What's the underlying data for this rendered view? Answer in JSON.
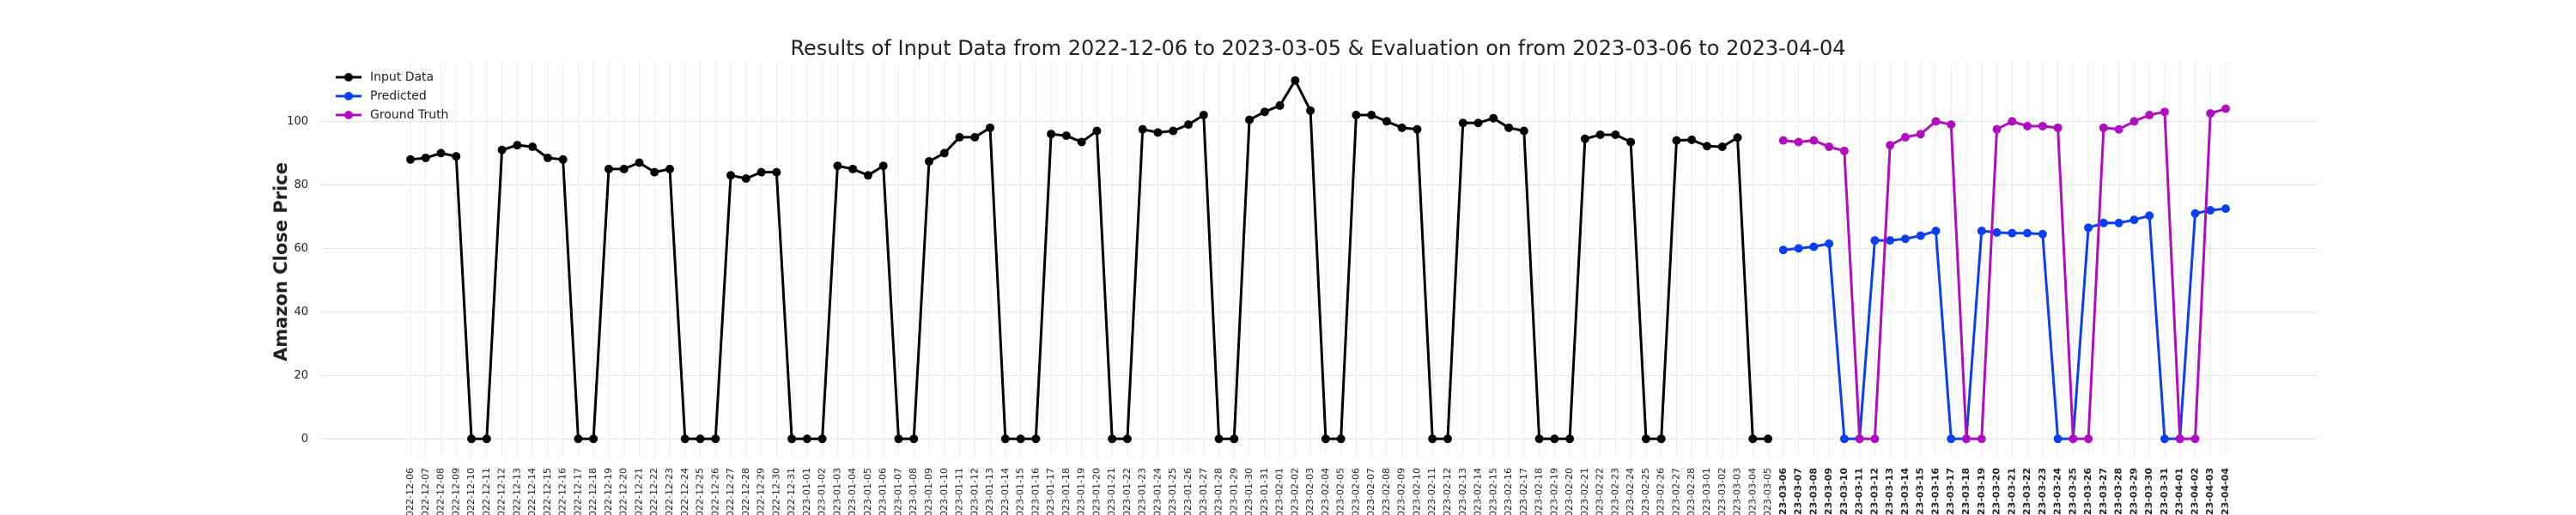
{
  "chart_data": {
    "type": "line",
    "title": "Results of Input Data from 2022-12-06 to 2023-03-05 & Evaluation on from 2023-03-06 to 2023-04-04",
    "ylabel": "Amazon Close Price",
    "categories": [
      "2022-12-06",
      "2022-12-07",
      "2022-12-08",
      "2022-12-09",
      "2022-12-10",
      "2022-12-11",
      "2022-12-12",
      "2022-12-13",
      "2022-12-14",
      "2022-12-15",
      "2022-12-16",
      "2022-12-17",
      "2022-12-18",
      "2022-12-19",
      "2022-12-20",
      "2022-12-21",
      "2022-12-22",
      "2022-12-23",
      "2022-12-24",
      "2022-12-25",
      "2022-12-26",
      "2022-12-27",
      "2022-12-28",
      "2022-12-29",
      "2022-12-30",
      "2022-12-31",
      "2023-01-01",
      "2023-01-02",
      "2023-01-03",
      "2023-01-04",
      "2023-01-05",
      "2023-01-06",
      "2023-01-07",
      "2023-01-08",
      "2023-01-09",
      "2023-01-10",
      "2023-01-11",
      "2023-01-12",
      "2023-01-13",
      "2023-01-14",
      "2023-01-15",
      "2023-01-16",
      "2023-01-17",
      "2023-01-18",
      "2023-01-19",
      "2023-01-20",
      "2023-01-21",
      "2023-01-22",
      "2023-01-23",
      "2023-01-24",
      "2023-01-25",
      "2023-01-26",
      "2023-01-27",
      "2023-01-28",
      "2023-01-29",
      "2023-01-30",
      "2023-01-31",
      "2023-02-01",
      "2023-02-02",
      "2023-02-03",
      "2023-02-04",
      "2023-02-05",
      "2023-02-06",
      "2023-02-07",
      "2023-02-08",
      "2023-02-09",
      "2023-02-10",
      "2023-02-11",
      "2023-02-12",
      "2023-02-13",
      "2023-02-14",
      "2023-02-15",
      "2023-02-16",
      "2023-02-17",
      "2023-02-18",
      "2023-02-19",
      "2023-02-20",
      "2023-02-21",
      "2023-02-22",
      "2023-02-23",
      "2023-02-24",
      "2023-02-25",
      "2023-02-26",
      "2023-02-27",
      "2023-02-28",
      "2023-03-01",
      "2023-03-02",
      "2023-03-03",
      "2023-03-04",
      "2023-03-05",
      "2023-03-06",
      "2023-03-07",
      "2023-03-08",
      "2023-03-09",
      "2023-03-10",
      "2023-03-11",
      "2023-03-12",
      "2023-03-13",
      "2023-03-14",
      "2023-03-15",
      "2023-03-16",
      "2023-03-17",
      "2023-03-18",
      "2023-03-19",
      "2023-03-20",
      "2023-03-21",
      "2023-03-22",
      "2023-03-23",
      "2023-03-24",
      "2023-03-25",
      "2023-03-26",
      "2023-03-27",
      "2023-03-28",
      "2023-03-29",
      "2023-03-30",
      "2023-03-31",
      "2023-04-01",
      "2023-04-02",
      "2023-04-03",
      "2023-04-04"
    ],
    "series": [
      {
        "name": "Input Data",
        "color": "#000000",
        "values": [
          88,
          88.5,
          90,
          89,
          0,
          0,
          91,
          92.5,
          92,
          88.5,
          88,
          0,
          0,
          85,
          85,
          87,
          84,
          85,
          0,
          0,
          0,
          83,
          82,
          84,
          84,
          0,
          0,
          0,
          86,
          85,
          83,
          86,
          0,
          0,
          87.4,
          90,
          95,
          95,
          98,
          0,
          0,
          0,
          96,
          95.5,
          93.5,
          97,
          0,
          0,
          97.5,
          96.5,
          97,
          99,
          102,
          0,
          0,
          100.5,
          103,
          105,
          112.9,
          103.4,
          0,
          0,
          102,
          102,
          100,
          98,
          97.5,
          0,
          0,
          99.5,
          99.5,
          101,
          98,
          97,
          0,
          0,
          0,
          94.5,
          95.8,
          95.8,
          93.5,
          0,
          0,
          94,
          94.2,
          92.2,
          92,
          94.9,
          0,
          0,
          null,
          null,
          null,
          null,
          null,
          null,
          null,
          null,
          null,
          null,
          null,
          null,
          null,
          null,
          null,
          null,
          null,
          null,
          null,
          null,
          null,
          null,
          null,
          null,
          null,
          null,
          null,
          null,
          null,
          null
        ]
      },
      {
        "name": "Predicted",
        "color": "#0a3ff0",
        "values": [
          null,
          null,
          null,
          null,
          null,
          null,
          null,
          null,
          null,
          null,
          null,
          null,
          null,
          null,
          null,
          null,
          null,
          null,
          null,
          null,
          null,
          null,
          null,
          null,
          null,
          null,
          null,
          null,
          null,
          null,
          null,
          null,
          null,
          null,
          null,
          null,
          null,
          null,
          null,
          null,
          null,
          null,
          null,
          null,
          null,
          null,
          null,
          null,
          null,
          null,
          null,
          null,
          null,
          null,
          null,
          null,
          null,
          null,
          null,
          null,
          null,
          null,
          null,
          null,
          null,
          null,
          null,
          null,
          null,
          null,
          null,
          null,
          null,
          null,
          null,
          null,
          null,
          null,
          null,
          null,
          null,
          null,
          null,
          null,
          null,
          null,
          null,
          null,
          null,
          null,
          59.5,
          60,
          60.5,
          61.5,
          0,
          0,
          62.5,
          62.5,
          63,
          64,
          65.5,
          0,
          0,
          65.5,
          65,
          64.8,
          64.8,
          64.5,
          0,
          0,
          66.5,
          68,
          68,
          69,
          70.3,
          0,
          0,
          71,
          72,
          72.5
        ]
      },
      {
        "name": "Ground Truth",
        "color": "#b00cc0",
        "values": [
          null,
          null,
          null,
          null,
          null,
          null,
          null,
          null,
          null,
          null,
          null,
          null,
          null,
          null,
          null,
          null,
          null,
          null,
          null,
          null,
          null,
          null,
          null,
          null,
          null,
          null,
          null,
          null,
          null,
          null,
          null,
          null,
          null,
          null,
          null,
          null,
          null,
          null,
          null,
          null,
          null,
          null,
          null,
          null,
          null,
          null,
          null,
          null,
          null,
          null,
          null,
          null,
          null,
          null,
          null,
          null,
          null,
          null,
          null,
          null,
          null,
          null,
          null,
          null,
          null,
          null,
          null,
          null,
          null,
          null,
          null,
          null,
          null,
          null,
          null,
          null,
          null,
          null,
          null,
          null,
          null,
          null,
          null,
          null,
          null,
          null,
          null,
          null,
          null,
          null,
          94,
          93.5,
          94,
          92,
          90.7,
          0,
          0,
          92.5,
          95,
          96,
          100,
          99,
          0,
          0,
          97.5,
          100,
          98.5,
          98.5,
          98,
          0,
          0,
          98,
          97.5,
          100,
          102,
          103,
          0,
          0,
          102.5,
          104
        ]
      }
    ],
    "ylim": [
      -5.6,
      118.5
    ],
    "yticks": [
      0,
      20,
      40,
      60,
      80,
      100
    ],
    "grid": true,
    "legend": "upper left"
  }
}
